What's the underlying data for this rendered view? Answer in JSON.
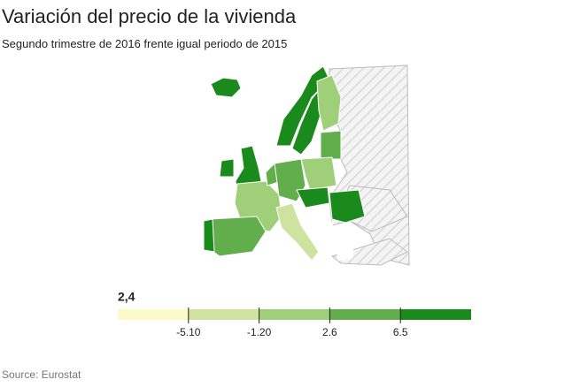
{
  "header": {
    "title": "Variación del precio de la vivienda",
    "subtitle": "Segundo trimestre de 2016 frente igual periodo de 2015"
  },
  "legend": {
    "selected_value": "2,4",
    "colors": [
      "#fdf9c8",
      "#cfe3a0",
      "#a0cf7a",
      "#62ad4c",
      "#1a8a1c"
    ],
    "ticks": [
      {
        "value": -5.1,
        "label": "-5.10"
      },
      {
        "value": -1.2,
        "label": "-1.20"
      },
      2.6,
      6.5
    ]
  },
  "footer": {
    "source": "Source: Eurostat"
  }
}
